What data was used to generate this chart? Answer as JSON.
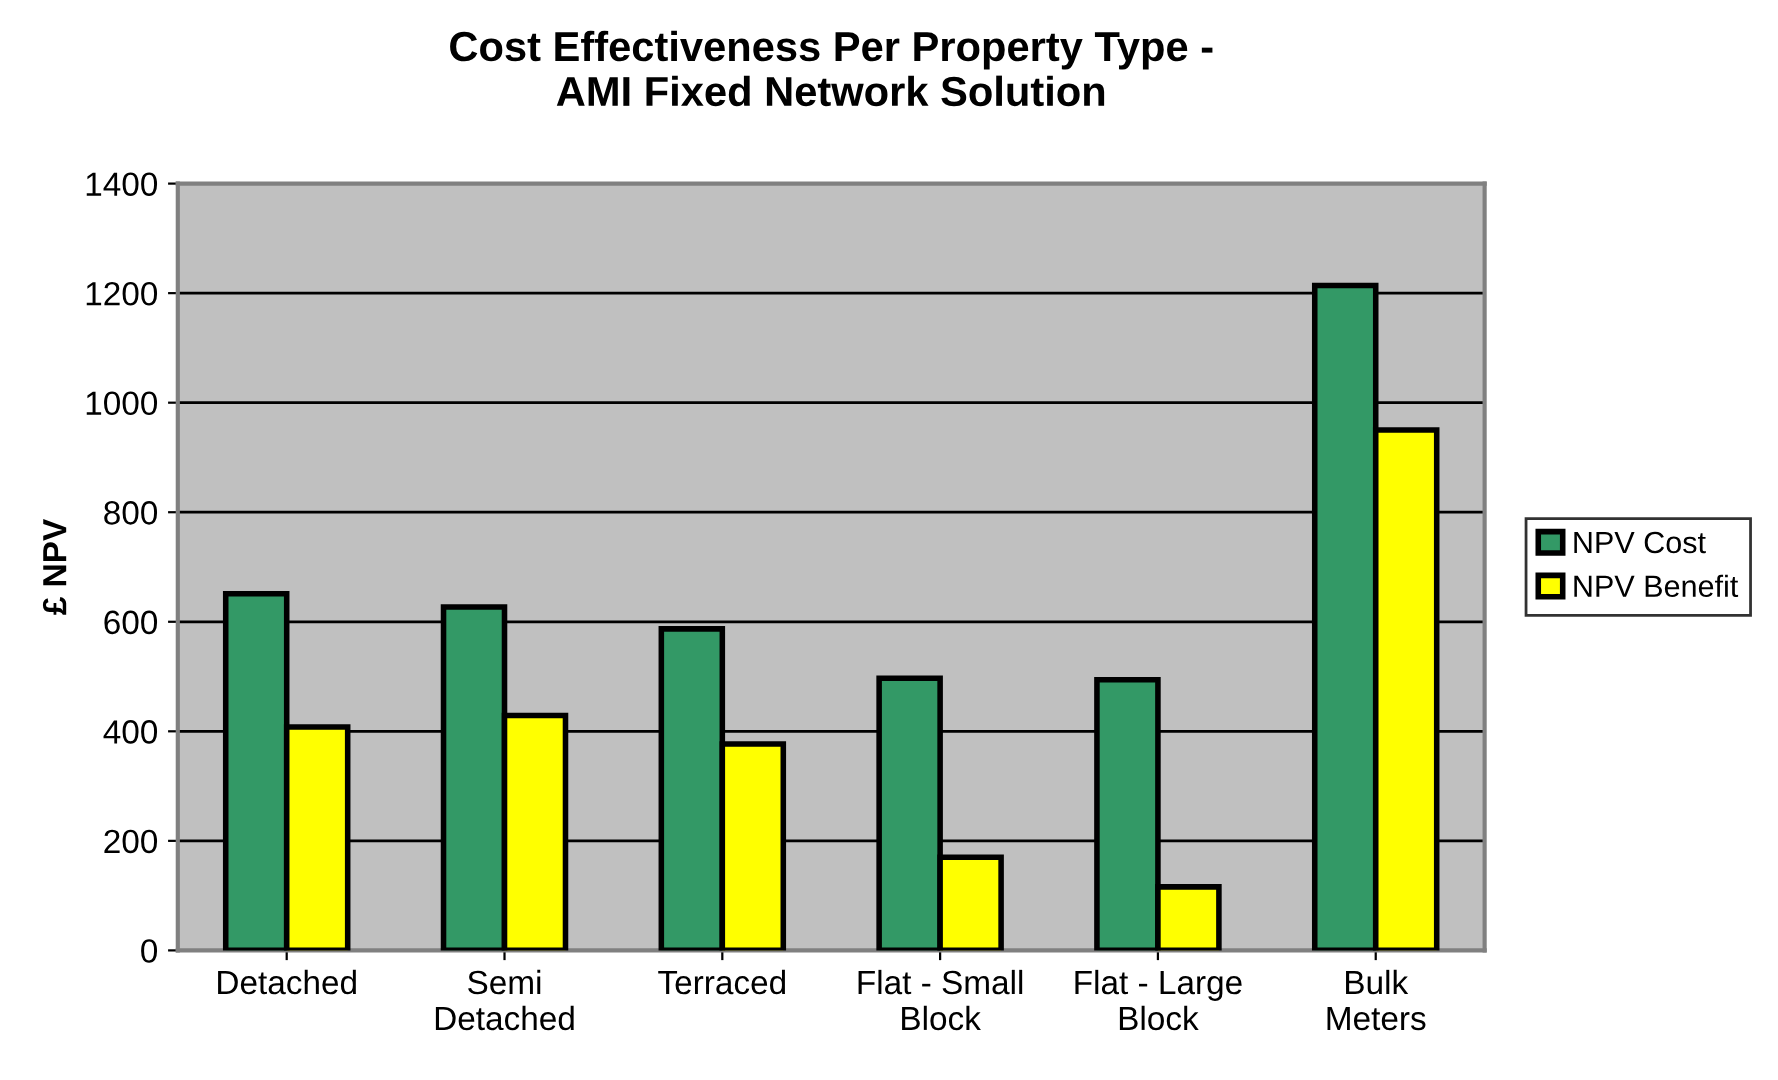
{
  "chart_data": {
    "type": "bar",
    "title": "Cost Effectiveness Per Property Type -\nAMI Fixed Network Solution",
    "ylabel": "£ NPV",
    "categories": [
      "Detached",
      "Semi\nDetached",
      "Terraced",
      "Flat - Small\nBlock",
      "Flat - Large\nBlock",
      "Bulk\nMeters"
    ],
    "series": [
      {
        "name": "NPV Cost",
        "color": "#339966",
        "values": [
          651,
          627,
          587,
          497,
          494,
          1214
        ]
      },
      {
        "name": "NPV Benefit",
        "color": "#ffff00",
        "values": [
          408,
          429,
          377,
          170,
          116,
          950
        ]
      }
    ],
    "ylim": [
      0,
      1400
    ],
    "yticks": [
      0,
      200,
      400,
      600,
      800,
      1000,
      1200,
      1400
    ],
    "grid": "y",
    "legend": "right"
  }
}
